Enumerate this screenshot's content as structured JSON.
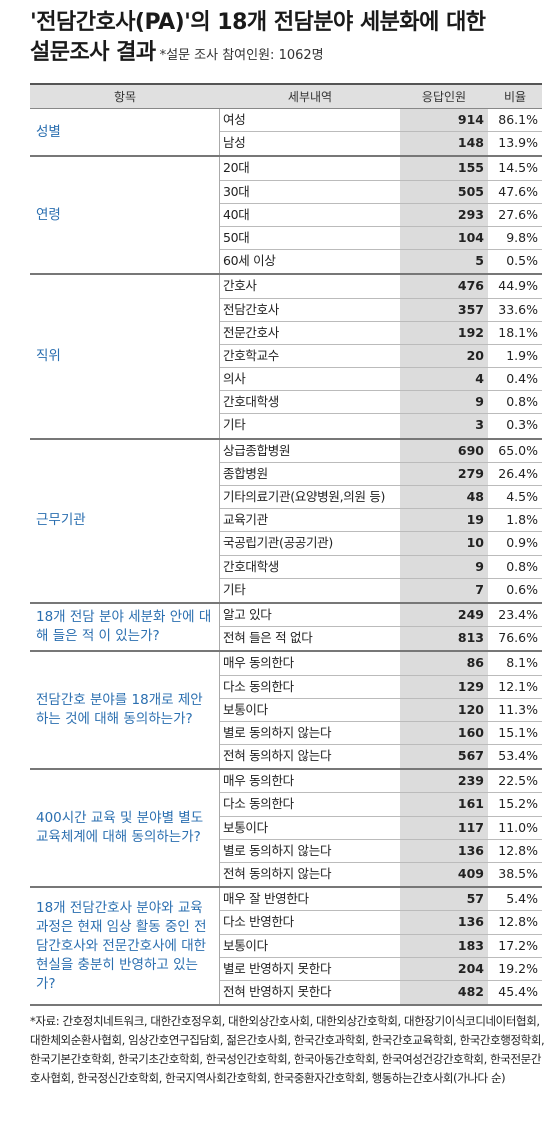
{
  "title": {
    "line1": "'전담간호사(PA)'의 18개 전담분야 세분화에 대한",
    "line2": "설문조사 결과",
    "note": "*설문 조사 참여인원: 1062명"
  },
  "headers": [
    "항목",
    "세부내역",
    "응답인원",
    "비율"
  ],
  "groups": [
    {
      "name": "성별",
      "rows": [
        [
          "여성",
          "914",
          "86.1%"
        ],
        [
          "남성",
          "148",
          "13.9%"
        ]
      ]
    },
    {
      "name": "연령",
      "rows": [
        [
          "20대",
          "155",
          "14.5%"
        ],
        [
          "30대",
          "505",
          "47.6%"
        ],
        [
          "40대",
          "293",
          "27.6%"
        ],
        [
          "50대",
          "104",
          "9.8%"
        ],
        [
          "60세 이상",
          "5",
          "0.5%"
        ]
      ]
    },
    {
      "name": "직위",
      "rows": [
        [
          "간호사",
          "476",
          "44.9%"
        ],
        [
          "전담간호사",
          "357",
          "33.6%"
        ],
        [
          "전문간호사",
          "192",
          "18.1%"
        ],
        [
          "간호학교수",
          "20",
          "1.9%"
        ],
        [
          "의사",
          "4",
          "0.4%"
        ],
        [
          "간호대학생",
          "9",
          "0.8%"
        ],
        [
          "기타",
          "3",
          "0.3%"
        ]
      ]
    },
    {
      "name": "근무기관",
      "rows": [
        [
          "상급종합병원",
          "690",
          "65.0%"
        ],
        [
          "종합병원",
          "279",
          "26.4%"
        ],
        [
          "기타의료기관(요양병원,의원 등)",
          "48",
          "4.5%"
        ],
        [
          "교육기관",
          "19",
          "1.8%"
        ],
        [
          "국공립기관(공공기관)",
          "10",
          "0.9%"
        ],
        [
          "간호대학생",
          "9",
          "0.8%"
        ],
        [
          "기타",
          "7",
          "0.6%"
        ]
      ]
    },
    {
      "name": "18개 전담 분야 세분화 안에 대해 들은 적 이 있는가?",
      "rows": [
        [
          "알고 있다",
          "249",
          "23.4%"
        ],
        [
          "전혀 들은 적 없다",
          "813",
          "76.6%"
        ]
      ]
    },
    {
      "name": "전담간호 분야를 18개로 제안하는 것에 대해 동의하는가?",
      "rows": [
        [
          "매우 동의한다",
          "86",
          "8.1%"
        ],
        [
          "다소 동의한다",
          "129",
          "12.1%"
        ],
        [
          "보통이다",
          "120",
          "11.3%"
        ],
        [
          "별로 동의하지 않는다",
          "160",
          "15.1%"
        ],
        [
          "전혀 동의하지 않는다",
          "567",
          "53.4%"
        ]
      ]
    },
    {
      "name": "400시간 교육 및 분야별 별도 교육체계에 대해 동의하는가?",
      "rows": [
        [
          "매우 동의한다",
          "239",
          "22.5%"
        ],
        [
          "다소 동의한다",
          "161",
          "15.2%"
        ],
        [
          "보통이다",
          "117",
          "11.0%"
        ],
        [
          "별로 동의하지 않는다",
          "136",
          "12.8%"
        ],
        [
          "전혀 동의하지 않는다",
          "409",
          "38.5%"
        ]
      ]
    },
    {
      "name": "18개 전담간호사 분야와 교육과정은 현재 임상 활동 중인 전담간호사와 전문간호사에 대한 현실을 충분히 반영하고 있는가?",
      "rows": [
        [
          "매우 잘 반영한다",
          "57",
          "5.4%"
        ],
        [
          "다소 반영한다",
          "136",
          "12.8%"
        ],
        [
          "보통이다",
          "183",
          "17.2%"
        ],
        [
          "별로 반영하지 못한다",
          "204",
          "19.2%"
        ],
        [
          "전혀 반영하지 못한다",
          "482",
          "45.4%"
        ]
      ]
    }
  ],
  "footnote": "*자료: 간호정치네트워크, 대한간호정우회, 대한외상간호사회, 대한외상간호학회, 대한장기이식코디네이터협회, 대한체외순환사협회, 임상간호연구집담회, 젊은간호사회, 한국간호과학회, 한국간호교육학회, 한국간호행정학회, 한국기본간호학회, 한국기초간호학회, 한국성인간호학회, 한국아동간호학회, 한국여성건강간호학회, 한국전문간호사협회, 한국정신간호학회, 한국지역사회간호학회, 한국중환자간호학회, 행동하는간호사회(가나다 순)"
}
